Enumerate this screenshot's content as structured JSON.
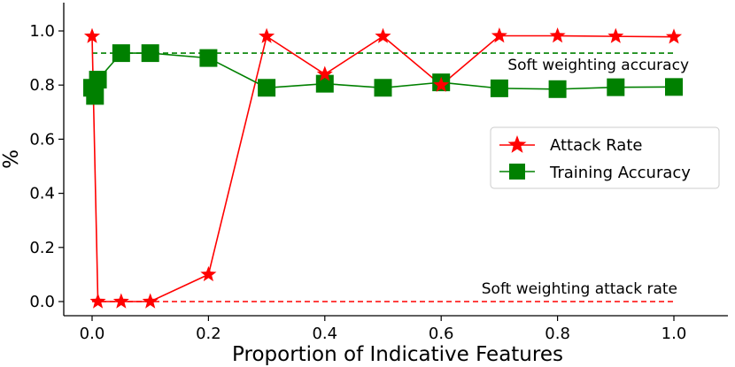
{
  "chart_data": {
    "type": "line",
    "xlabel": "Proportion of Indicative Features",
    "ylabel": "%",
    "xlim": [
      -0.04,
      1.02
    ],
    "ylim": [
      -0.05,
      1.1
    ],
    "xticks": [
      0.0,
      0.2,
      0.4,
      0.6,
      0.8,
      1.0
    ],
    "xtick_labels": [
      "0.0",
      "0.2",
      "0.4",
      "0.6",
      "0.8",
      "1.0"
    ],
    "yticks": [
      0.0,
      0.2,
      0.4,
      0.6,
      0.8,
      1.0
    ],
    "ytick_labels": [
      "0.0",
      "0.2",
      "0.4",
      "0.6",
      "0.8",
      "1.0"
    ],
    "legend_position": "center-right",
    "grid": false,
    "series": [
      {
        "name": "Attack Rate",
        "color": "#ff0000",
        "marker": "star",
        "x": [
          0.0,
          0.01,
          0.05,
          0.1,
          0.2,
          0.3,
          0.4,
          0.5,
          0.6,
          0.7,
          0.8,
          0.9,
          1.0
        ],
        "y": [
          0.98,
          0.0,
          0.0,
          0.0,
          0.1,
          0.98,
          0.84,
          0.98,
          0.8,
          0.982,
          0.982,
          0.98,
          0.978
        ]
      },
      {
        "name": "Training Accuracy",
        "color": "#008000",
        "marker": "square",
        "x": [
          0.0,
          0.005,
          0.01,
          0.05,
          0.1,
          0.2,
          0.3,
          0.4,
          0.5,
          0.6,
          0.7,
          0.8,
          0.9,
          1.0
        ],
        "y": [
          0.79,
          0.76,
          0.82,
          0.918,
          0.918,
          0.9,
          0.79,
          0.805,
          0.79,
          0.81,
          0.788,
          0.785,
          0.792,
          0.793
        ]
      }
    ],
    "reference_lines": [
      {
        "label": "Soft weighting accuracy",
        "y": 0.918,
        "x_from": 0.0,
        "x_to": 1.0,
        "color": "#008000",
        "style": "dashed"
      },
      {
        "label": "Soft weighting attack rate",
        "y": 0.0,
        "x_from": 0.0,
        "x_to": 1.0,
        "color": "#ff0000",
        "style": "dashed"
      }
    ]
  }
}
